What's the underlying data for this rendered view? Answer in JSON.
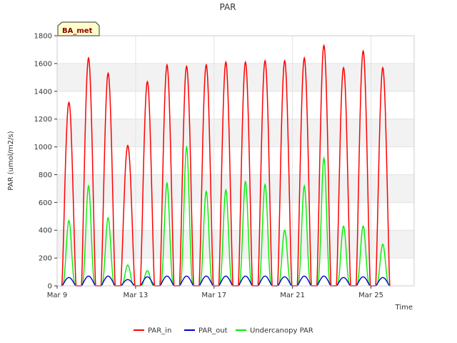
{
  "chart_data": {
    "type": "line",
    "title": "PAR",
    "xlabel": "Time",
    "ylabel": "PAR (umol/m2/s)",
    "badge": "BA_met",
    "ylim": [
      0,
      1800
    ],
    "yticks": [
      0,
      200,
      400,
      600,
      800,
      1000,
      1200,
      1400,
      1600,
      1800
    ],
    "xlim_days": [
      9,
      27.2
    ],
    "xticks": [
      {
        "day": 9,
        "label": "Mar 9"
      },
      {
        "day": 13,
        "label": "Mar 13"
      },
      {
        "day": 17,
        "label": "Mar 17"
      },
      {
        "day": 21,
        "label": "Mar 21"
      },
      {
        "day": 25,
        "label": "Mar 25"
      }
    ],
    "colors": {
      "PAR_in": "#ff0000",
      "PAR_out": "#0000cc",
      "Undercanopy PAR": "#00ee00"
    },
    "series": [
      {
        "name": "PAR_in",
        "noon_days": [
          9.6,
          10.6,
          11.6,
          12.6,
          13.6,
          14.6,
          15.6,
          16.6,
          17.6,
          18.6,
          19.6,
          20.6,
          21.6,
          22.6,
          23.6,
          24.6,
          25.6
        ],
        "daily_peak": [
          1320,
          1640,
          1530,
          1010,
          1470,
          1590,
          1580,
          1590,
          1610,
          1610,
          1620,
          1620,
          1640,
          1730,
          1570,
          1690,
          1570
        ]
      },
      {
        "name": "PAR_out",
        "noon_days": [
          9.6,
          10.6,
          11.6,
          12.6,
          13.6,
          14.6,
          15.6,
          16.6,
          17.6,
          18.6,
          19.6,
          20.6,
          21.6,
          22.6,
          23.6,
          24.6,
          25.6
        ],
        "daily_peak": [
          60,
          70,
          70,
          45,
          65,
          70,
          70,
          70,
          70,
          70,
          70,
          65,
          70,
          70,
          60,
          65,
          60
        ]
      },
      {
        "name": "Undercanopy PAR",
        "noon_days": [
          9.6,
          10.6,
          11.6,
          12.6,
          13.6,
          14.6,
          15.6,
          16.6,
          17.6,
          18.6,
          19.6,
          20.6,
          21.6,
          22.6,
          23.6,
          24.6,
          25.6
        ],
        "daily_peak": [
          470,
          720,
          490,
          150,
          110,
          740,
          1000,
          680,
          690,
          750,
          730,
          400,
          720,
          920,
          430,
          430,
          300
        ]
      }
    ],
    "legend": [
      "PAR_in",
      "PAR_out",
      "Undercanopy PAR"
    ],
    "legend_position": "bottom-center"
  }
}
